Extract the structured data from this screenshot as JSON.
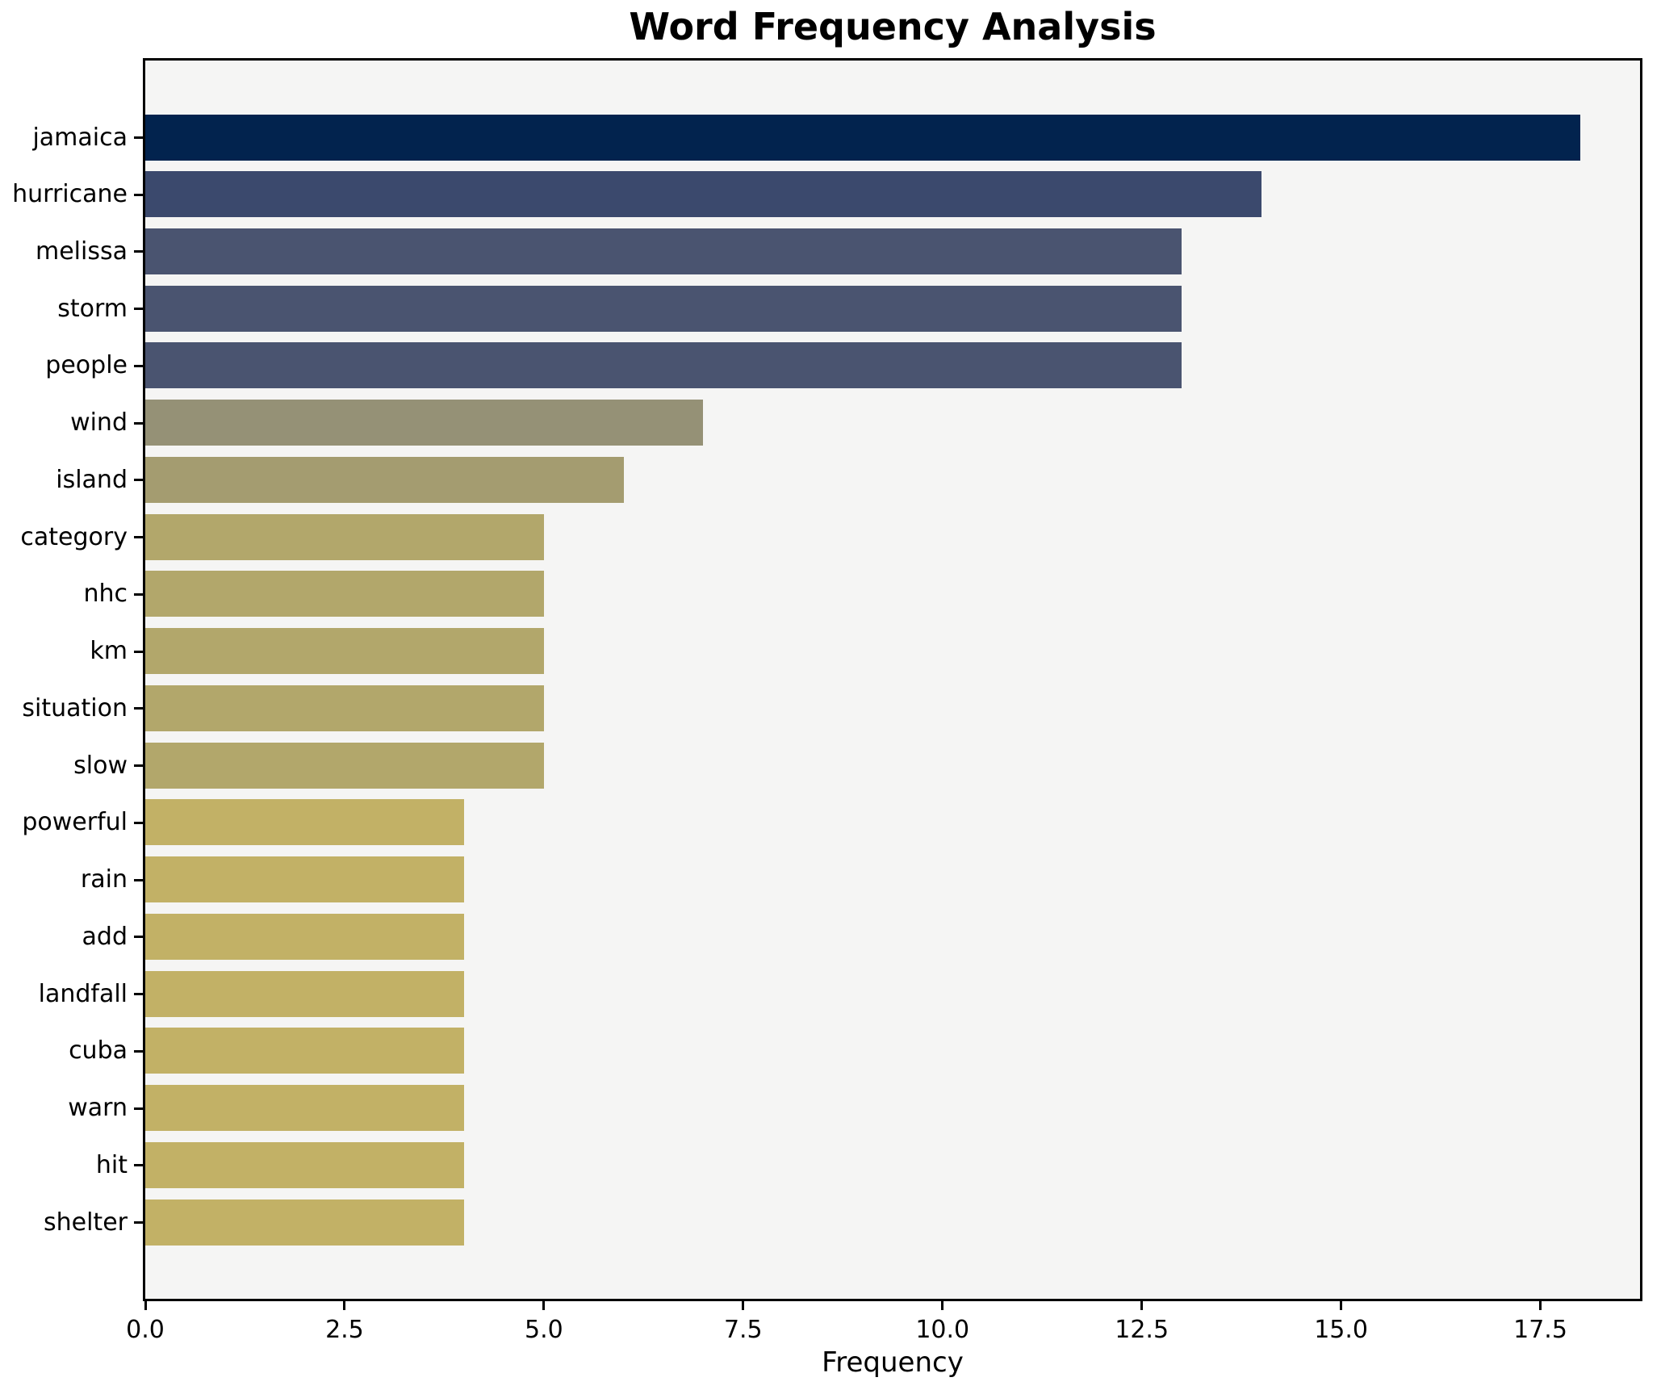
{
  "title": "Word Frequency Analysis",
  "chart_data": {
    "type": "bar",
    "orientation": "horizontal",
    "title": "Word Frequency Analysis",
    "xlabel": "Frequency",
    "ylabel": "",
    "categories": [
      "jamaica",
      "hurricane",
      "melissa",
      "storm",
      "people",
      "wind",
      "island",
      "category",
      "nhc",
      "km",
      "situation",
      "slow",
      "powerful",
      "rain",
      "add",
      "landfall",
      "cuba",
      "warn",
      "hit",
      "shelter"
    ],
    "values": [
      18,
      14,
      13,
      13,
      13,
      7,
      6,
      5,
      5,
      5,
      5,
      5,
      4,
      4,
      4,
      4,
      4,
      4,
      4,
      4
    ],
    "bar_colors": [
      "#02234e",
      "#3b496d",
      "#4a5470",
      "#4a5470",
      "#4a5470",
      "#959176",
      "#a49c70",
      "#b2a76b",
      "#b2a76b",
      "#b2a76b",
      "#b2a76b",
      "#b2a76b",
      "#c2b166",
      "#c2b166",
      "#c2b166",
      "#c2b166",
      "#c2b166",
      "#c2b166",
      "#c2b166",
      "#c2b166"
    ],
    "xlim": [
      0,
      18.75
    ],
    "xticks": [
      0,
      2.5,
      5,
      7.5,
      10,
      12.5,
      15,
      17.5
    ],
    "xtick_labels": [
      "0.0",
      "2.5",
      "5.0",
      "7.5",
      "10.0",
      "12.5",
      "15.0",
      "17.5"
    ],
    "grid": false,
    "legend": false,
    "colors": {
      "figure_background": "#ffffff",
      "plot_background": "#f5f5f4",
      "spine": "#000000",
      "text": "#000000"
    }
  }
}
